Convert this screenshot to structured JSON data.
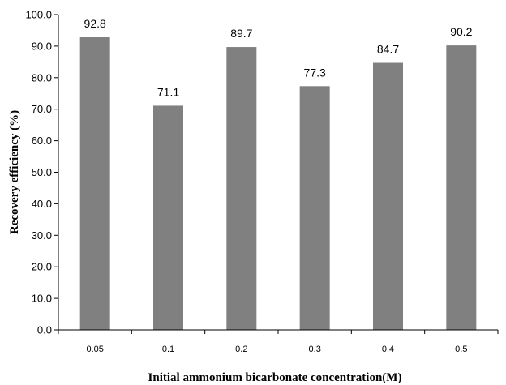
{
  "chart_data": {
    "type": "bar",
    "title": "",
    "xlabel": "Initial ammonium bicarbonate concentration(M)",
    "ylabel": "Recovery efficiency (%)",
    "categories": [
      "0.05",
      "0.1",
      "0.2",
      "0.3",
      "0.4",
      "0.5"
    ],
    "values": [
      92.8,
      71.1,
      89.7,
      77.3,
      84.7,
      90.2
    ],
    "data_labels": [
      "92.8",
      "71.1",
      "89.7",
      "77.3",
      "84.7",
      "90.2"
    ],
    "ylim": [
      0,
      100
    ],
    "yticks": [
      "0.0",
      "10.0",
      "20.0",
      "30.0",
      "40.0",
      "50.0",
      "60.0",
      "70.0",
      "80.0",
      "90.0",
      "100.0"
    ],
    "grid": false,
    "legend": "none",
    "bar_color": "#808080"
  }
}
